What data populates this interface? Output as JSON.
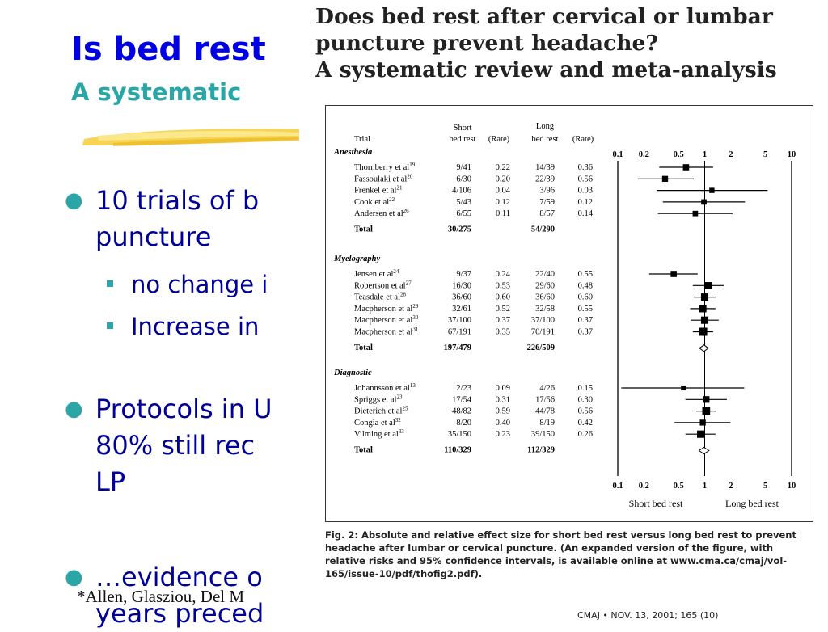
{
  "slide": {
    "title": "Is bed rest",
    "subtitle": "A systematic",
    "bullets": [
      {
        "line1": "10 trials of b",
        "line2": "puncture"
      },
      {
        "line1": "Protocols in U",
        "line2": "80% still rec",
        "line3": "LP"
      },
      {
        "line1": "…evidence o",
        "line2": "years preced"
      }
    ],
    "sub_bullets": [
      "no change i",
      "Increase in"
    ],
    "citation": "*Allen, Glasziou, Del M",
    "bullet_color": "#2aa6a6",
    "title_color": "#0000e6",
    "text_color": "#000099"
  },
  "paper": {
    "title_lines": [
      "Does bed rest after cervical or lumbar",
      "puncture prevent headache?",
      "A systematic review and meta-analysis"
    ],
    "caption": "Fig. 2: Absolute and relative effect size for short bed rest versus long bed rest to prevent headache after lumbar or cervical puncture. (An expanded version of the figure, with relative risks and 95% confidence intervals, is available online at www.cma.ca/cmaj/vol-165/issue-10/pdf/thofig2.pdf).",
    "footer": "CMAJ • NOV. 13, 2001; 165 (10)"
  },
  "chart_data": {
    "type": "forest",
    "columns": {
      "trial": "Trial",
      "short_top": "Short",
      "short_bottom": "bed rest",
      "short_rate": "(Rate)",
      "long_top": "Long",
      "long_bottom": "bed rest",
      "long_rate": "(Rate)"
    },
    "axis": {
      "scale": "log",
      "ticks": [
        "0.1",
        "0.2",
        "0.5",
        "1",
        "2",
        "5",
        "10"
      ],
      "tick_values": [
        0.1,
        0.2,
        0.5,
        1,
        2,
        5,
        10
      ],
      "range": [
        0.1,
        10
      ],
      "left_label": "Short bed rest",
      "right_label": "Long bed rest"
    },
    "groups": [
      {
        "name": "Anesthesia",
        "rows": [
          {
            "trial": "Thornberry et al",
            "ref": "19",
            "short": "9/41",
            "short_rate": "0.22",
            "long": "14/39",
            "long_rate": "0.36",
            "rr": 0.61,
            "lo": 0.3,
            "hi": 1.25,
            "weight": 0.6
          },
          {
            "trial": "Fassoulaki et al",
            "ref": "20",
            "short": "6/30",
            "short_rate": "0.20",
            "long": "22/39",
            "long_rate": "0.56",
            "rr": 0.35,
            "lo": 0.17,
            "hi": 0.75,
            "weight": 0.55
          },
          {
            "trial": "Frenkel et al",
            "ref": "21",
            "short": "4/106",
            "short_rate": "0.04",
            "long": "3/96",
            "long_rate": "0.03",
            "rr": 1.21,
            "lo": 0.28,
            "hi": 5.3,
            "weight": 0.4
          },
          {
            "trial": "Cook et al",
            "ref": "22",
            "short": "5/43",
            "short_rate": "0.12",
            "long": "7/59",
            "long_rate": "0.12",
            "rr": 0.98,
            "lo": 0.33,
            "hi": 2.9,
            "weight": 0.45
          },
          {
            "trial": "Andersen et al",
            "ref": "26",
            "short": "6/55",
            "short_rate": "0.11",
            "long": "8/57",
            "long_rate": "0.14",
            "rr": 0.78,
            "lo": 0.29,
            "hi": 2.1,
            "weight": 0.45
          }
        ],
        "total": {
          "short": "30/275",
          "long": "54/290"
        }
      },
      {
        "name": "Myelography",
        "rows": [
          {
            "trial": "Jensen et al",
            "ref": "24",
            "short": "9/37",
            "short_rate": "0.24",
            "long": "22/40",
            "long_rate": "0.55",
            "rr": 0.44,
            "lo": 0.23,
            "hi": 0.83,
            "weight": 0.6
          },
          {
            "trial": "Robertson et al",
            "ref": "27",
            "short": "16/30",
            "short_rate": "0.53",
            "long": "29/60",
            "long_rate": "0.48",
            "rr": 1.1,
            "lo": 0.73,
            "hi": 1.66,
            "weight": 0.75
          },
          {
            "trial": "Teasdale et al",
            "ref": "28",
            "short": "36/60",
            "short_rate": "0.60",
            "long": "36/60",
            "long_rate": "0.60",
            "rr": 1.0,
            "lo": 0.75,
            "hi": 1.34,
            "weight": 0.85
          },
          {
            "trial": "Macpherson et al",
            "ref": "29",
            "short": "32/61",
            "short_rate": "0.52",
            "long": "32/58",
            "long_rate": "0.55",
            "rr": 0.95,
            "lo": 0.68,
            "hi": 1.33,
            "weight": 0.85
          },
          {
            "trial": "Macpherson et al",
            "ref": "30",
            "short": "37/100",
            "short_rate": "0.37",
            "long": "37/100",
            "long_rate": "0.37",
            "rr": 1.0,
            "lo": 0.69,
            "hi": 1.45,
            "weight": 0.85
          },
          {
            "trial": "Macpherson et al",
            "ref": "31",
            "short": "67/191",
            "short_rate": "0.35",
            "long": "70/191",
            "long_rate": "0.37",
            "rr": 0.96,
            "lo": 0.73,
            "hi": 1.25,
            "weight": 1.0
          }
        ],
        "total": {
          "short": "197/479",
          "long": "226/509",
          "rr": 0.98,
          "lo": 0.87,
          "hi": 1.1
        }
      },
      {
        "name": "Diagnostic",
        "rows": [
          {
            "trial": "Johannsson et al",
            "ref": "13",
            "short": "2/23",
            "short_rate": "0.09",
            "long": "4/26",
            "long_rate": "0.15",
            "rr": 0.57,
            "lo": 0.11,
            "hi": 2.85,
            "weight": 0.35
          },
          {
            "trial": "Spriggs et al",
            "ref": "23",
            "short": "17/54",
            "short_rate": "0.31",
            "long": "17/56",
            "long_rate": "0.30",
            "rr": 1.04,
            "lo": 0.6,
            "hi": 1.8,
            "weight": 0.7
          },
          {
            "trial": "Dieterich et al",
            "ref": "25",
            "short": "48/82",
            "short_rate": "0.59",
            "long": "44/78",
            "long_rate": "0.56",
            "rr": 1.04,
            "lo": 0.8,
            "hi": 1.35,
            "weight": 0.95
          },
          {
            "trial": "Congia et al",
            "ref": "32",
            "short": "8/20",
            "short_rate": "0.40",
            "long": "8/19",
            "long_rate": "0.42",
            "rr": 0.95,
            "lo": 0.45,
            "hi": 1.98,
            "weight": 0.55
          },
          {
            "trial": "Vilming et al",
            "ref": "33",
            "short": "35/150",
            "short_rate": "0.23",
            "long": "39/150",
            "long_rate": "0.26",
            "rr": 0.9,
            "lo": 0.6,
            "hi": 1.33,
            "weight": 0.85
          }
        ],
        "total": {
          "short": "110/329",
          "long": "112/329",
          "rr": 0.98,
          "lo": 0.86,
          "hi": 1.12
        }
      }
    ],
    "total_label": "Total"
  }
}
